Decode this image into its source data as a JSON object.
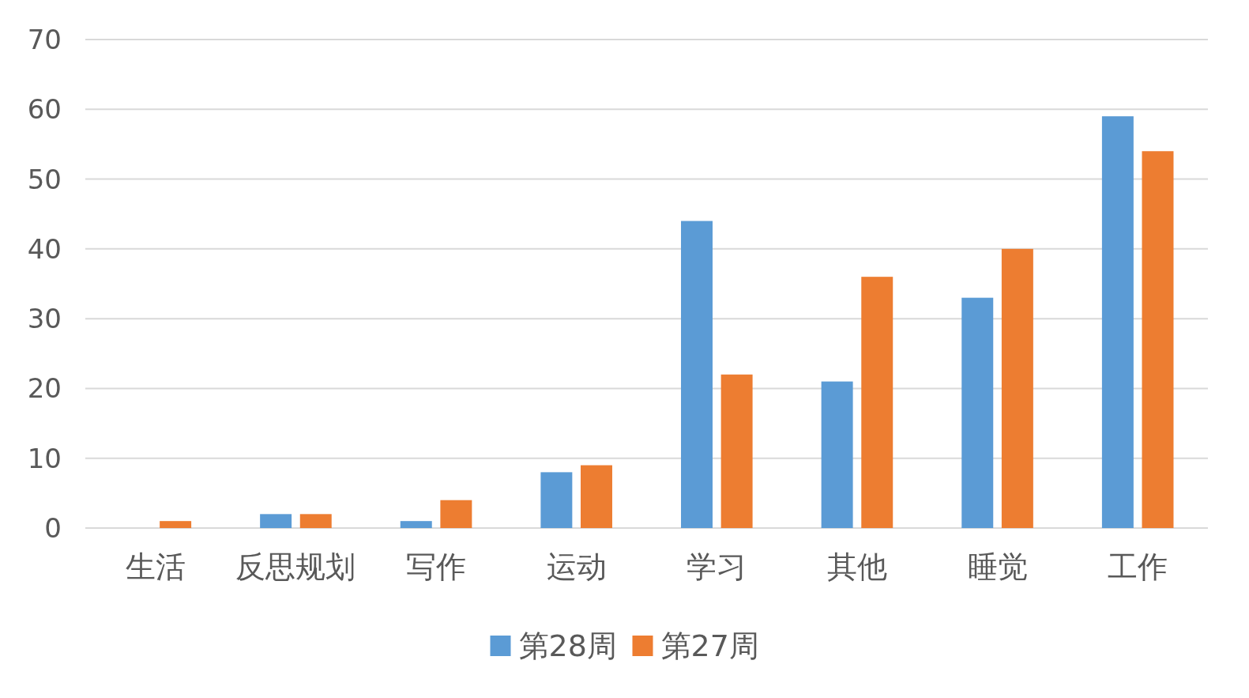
{
  "chart_data": {
    "type": "bar",
    "categories": [
      "生活",
      "反思规划",
      "写作",
      "运动",
      "学习",
      "其他",
      "睡觉",
      "工作"
    ],
    "series": [
      {
        "name": "第28周",
        "color": "#5b9bd5",
        "values": [
          0,
          2,
          1,
          8,
          44,
          21,
          33,
          59
        ]
      },
      {
        "name": "第27周",
        "color": "#ed7d31",
        "values": [
          1,
          2,
          4,
          9,
          22,
          36,
          40,
          54
        ]
      }
    ],
    "ylim": [
      0,
      70
    ],
    "yticks": [
      0,
      10,
      20,
      30,
      40,
      50,
      60,
      70
    ],
    "grid": "y",
    "legend": "bottom"
  }
}
